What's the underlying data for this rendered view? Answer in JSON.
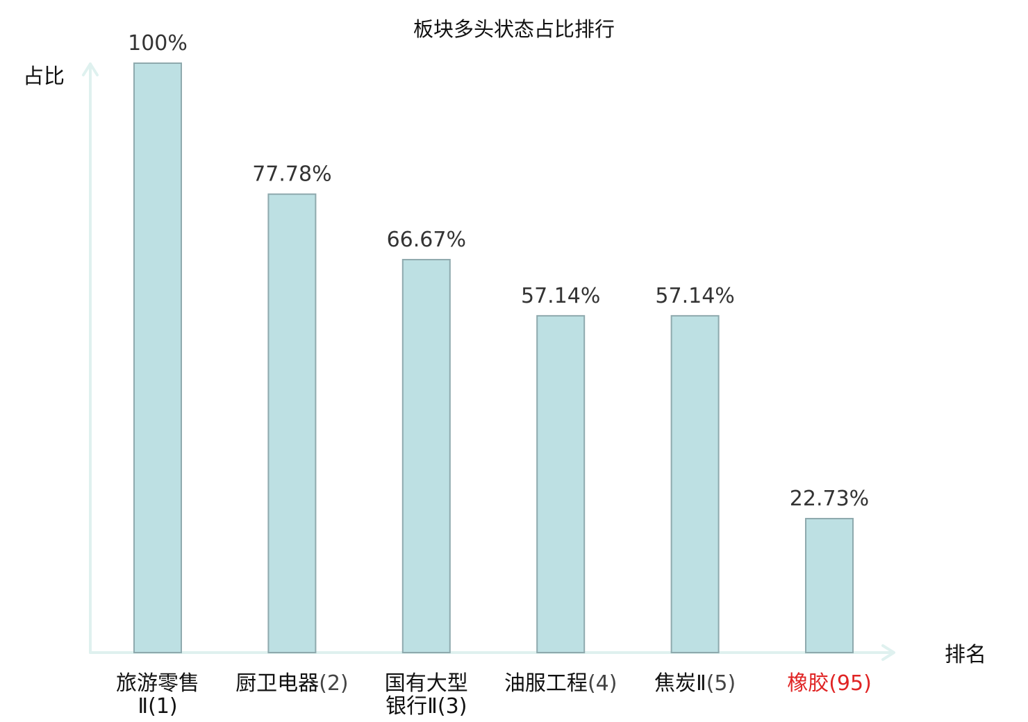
{
  "chart_data": {
    "type": "bar",
    "title": "板块多头状态占比排行",
    "ylabel": "占比",
    "xlabel": "排名",
    "ylim": [
      0,
      100
    ],
    "categories": [
      {
        "line1": "旅游零售",
        "line2": "Ⅱ(1)",
        "highlight": false
      },
      {
        "line1": "厨卫电器",
        "rank": "(2)",
        "highlight": false
      },
      {
        "line1": "国有大型",
        "line2": "银行Ⅱ(3)",
        "highlight": false
      },
      {
        "line1": "油服工程",
        "rank": "(4)",
        "highlight": false
      },
      {
        "line1": "焦炭Ⅱ",
        "rank": "(5)",
        "highlight": false
      },
      {
        "line1": "橡胶",
        "rank": "(95)",
        "highlight": true
      }
    ],
    "values": [
      100,
      77.78,
      66.67,
      57.14,
      57.14,
      22.73
    ],
    "value_labels": [
      "100%",
      "77.78%",
      "66.67%",
      "57.14%",
      "57.14%",
      "22.73%"
    ],
    "bar_color": "#bde0e3",
    "bar_stroke": "#8ea9ad",
    "axis_color": "#dff1ef",
    "highlight_color": "#e02424",
    "grid": false,
    "legend": "none"
  }
}
